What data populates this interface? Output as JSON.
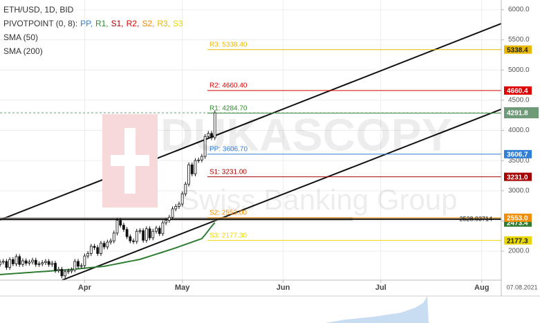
{
  "chart_data": {
    "type": "candlestick",
    "title": "ETH/USD, 1D, BID",
    "indicator_title": "PIVOTPOINT (0, 8):",
    "watermark": [
      "DUKASCOPY",
      "Swiss Banking Group"
    ],
    "date_label": "07.08.2021",
    "xlim": [
      0,
      154
    ],
    "xticks": [
      {
        "value": 26,
        "label": "Apr"
      },
      {
        "value": 56,
        "label": "May"
      },
      {
        "value": 87,
        "label": "Jun"
      },
      {
        "value": 117,
        "label": "Jul"
      },
      {
        "value": 148,
        "label": "Aug"
      }
    ],
    "ylim": [
      1520,
      6160
    ],
    "yticks": [
      {
        "value": 2000,
        "label": "2000.0"
      },
      {
        "value": 2500,
        "label": "2500.0"
      },
      {
        "value": 3000,
        "label": "3000.0"
      },
      {
        "value": 3500,
        "label": "3500.0"
      },
      {
        "value": 4000,
        "label": "4000.0"
      },
      {
        "value": 4500,
        "label": "4500.0"
      },
      {
        "value": 5000,
        "label": "5000.0"
      },
      {
        "value": 5500,
        "label": "5500.0"
      },
      {
        "value": 6000,
        "label": "6000.0"
      }
    ],
    "grid": true,
    "candles": {
      "up_color": "#ffffff",
      "down_color": "#111111",
      "open": [
        1780,
        1820,
        1830,
        1730,
        1860,
        1790,
        1910,
        1780,
        1840,
        1800,
        1820,
        1850,
        1780,
        1790,
        1810,
        1830,
        1780,
        1800,
        1680,
        1700,
        1590,
        1660,
        1670,
        1690,
        1830,
        1750,
        1760,
        1920,
        1960,
        2080,
        2060,
        1960,
        2130,
        2070,
        2150,
        2170,
        2300,
        2510,
        2430,
        2360,
        2240,
        2170,
        2160,
        2330,
        2340,
        2180,
        2370,
        2220,
        2330,
        2380,
        2290,
        2470,
        2510,
        2560,
        2700,
        2740,
        2780,
        2950,
        3110,
        3430,
        3280,
        3500,
        3510,
        3570,
        3900,
        3950,
        3880
      ],
      "high": [
        1860,
        1870,
        1870,
        1900,
        1900,
        1950,
        1950,
        1880,
        1880,
        1860,
        1890,
        1890,
        1830,
        1850,
        1870,
        1870,
        1840,
        1840,
        1740,
        1740,
        1700,
        1710,
        1730,
        1870,
        1870,
        1800,
        1960,
        2000,
        2120,
        2120,
        2100,
        2170,
        2170,
        2190,
        2210,
        2340,
        2550,
        2550,
        2470,
        2400,
        2280,
        2210,
        2370,
        2380,
        2380,
        2410,
        2410,
        2370,
        2420,
        2420,
        2510,
        2550,
        2600,
        2740,
        2780,
        2820,
        2990,
        3150,
        3470,
        3470,
        3540,
        3550,
        3610,
        3940,
        3990,
        3990,
        4330
      ],
      "low": [
        1740,
        1780,
        1690,
        1690,
        1750,
        1750,
        1740,
        1740,
        1760,
        1760,
        1780,
        1740,
        1740,
        1750,
        1770,
        1740,
        1740,
        1640,
        1640,
        1550,
        1550,
        1620,
        1630,
        1650,
        1710,
        1710,
        1720,
        1880,
        1920,
        2020,
        1920,
        1920,
        2030,
        2030,
        2110,
        2130,
        2260,
        2390,
        2320,
        2200,
        2130,
        2120,
        2120,
        2290,
        2140,
        2140,
        2180,
        2180,
        2290,
        2250,
        2250,
        2430,
        2470,
        2520,
        2660,
        2700,
        2740,
        2910,
        3070,
        3240,
        3240,
        3460,
        3470,
        3530,
        3860,
        3840,
        3840
      ],
      "close": [
        1820,
        1830,
        1730,
        1860,
        1790,
        1910,
        1780,
        1840,
        1800,
        1820,
        1850,
        1780,
        1790,
        1810,
        1830,
        1780,
        1800,
        1680,
        1700,
        1590,
        1660,
        1670,
        1690,
        1830,
        1750,
        1760,
        1920,
        1960,
        2080,
        2060,
        1960,
        2130,
        2070,
        2150,
        2170,
        2300,
        2510,
        2430,
        2360,
        2240,
        2170,
        2160,
        2330,
        2340,
        2180,
        2370,
        2220,
        2330,
        2380,
        2290,
        2470,
        2510,
        2560,
        2700,
        2740,
        2780,
        2950,
        3110,
        3430,
        3280,
        3500,
        3510,
        3570,
        3900,
        3950,
        3880,
        4291.8
      ]
    },
    "current_price_color": "#6f9a78",
    "series": [
      {
        "name": "SMA (50)",
        "color": "#2e7d32",
        "values": [
          1612,
          1616,
          1620,
          1623,
          1627,
          1631,
          1635,
          1639,
          1643,
          1646,
          1650,
          1654,
          1658,
          1662,
          1665,
          1669,
          1673,
          1677,
          1681,
          1685,
          1688,
          1692,
          1697,
          1702,
          1708,
          1713,
          1718,
          1723,
          1728,
          1734,
          1739,
          1744,
          1749,
          1759,
          1770,
          1780,
          1791,
          1801,
          1812,
          1822,
          1833,
          1843,
          1854,
          1864,
          1881,
          1898,
          1916,
          1933,
          1950,
          1967,
          1984,
          2002,
          2019,
          2036,
          2055,
          2074,
          2093,
          2112,
          2131,
          2150,
          2169,
          2188,
          2207,
          2270,
          2340,
          2410,
          2473.4
        ]
      },
      {
        "name": "SMA (200)",
        "color": "#b03030",
        "values": []
      }
    ],
    "pivots": [
      {
        "legend": "PP,",
        "label": "PP: 3606.70",
        "value": 3606.7,
        "badge_label": "3606.7",
        "color": "#2f7ed8"
      },
      {
        "legend": "R1,",
        "label": "R1: 4284.70",
        "value": 4284.7,
        "color": "#2e8b2e"
      },
      {
        "legend": "S1,",
        "label": "S1: 3231.00",
        "value": 3231,
        "badge_label": "3231.0",
        "color": "#a80000"
      },
      {
        "legend": "R2,",
        "label": "R2: 4660.40",
        "value": 4660.4,
        "badge_label": "4660.4",
        "color": "#e00000"
      },
      {
        "legend": "S2,",
        "label": "S2: 2553.00",
        "value": 2553,
        "badge_label": "2553.0",
        "color": "#f28c00"
      },
      {
        "legend": "R3,",
        "label": "R3: 5338.40",
        "value": 5338.4,
        "badge_label": "5338.4",
        "color": "#e8b800"
      },
      {
        "legend": "S3",
        "label": "S3: 2177.30",
        "value": 2177.3,
        "badge_label": "2177.3",
        "color": "#e8d800"
      }
    ],
    "hline": 2528.93714,
    "trendlines": [
      {
        "x": [
          0,
          154
        ],
        "y": [
          2517,
          5770
        ]
      },
      {
        "x": [
          19.1,
          154
        ],
        "y": [
          1520,
          4350
        ]
      }
    ]
  }
}
